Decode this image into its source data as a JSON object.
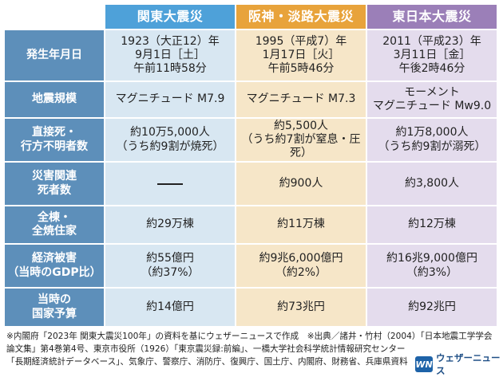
{
  "colors": {
    "kanto_header": "#4ea1d9",
    "hanshin_header": "#e8a33b",
    "higashi_header": "#9b7fb8",
    "row_header": "#5d8fba"
  },
  "columns": [
    {
      "label": "関東大震災"
    },
    {
      "label": "阪神・淡路大震災"
    },
    {
      "label": "東日本大震災"
    }
  ],
  "rows": [
    {
      "label": "発生年月日",
      "values": [
        "1923（大正12）年\n9月1日［土］\n午前11時58分",
        "1995（平成7）年\n1月17日［火］\n午前5時46分",
        "2011（平成23）年\n3月11日［金］\n午後2時46分"
      ]
    },
    {
      "label": "地震規模",
      "values": [
        "マグニチュード M7.9",
        "マグニチュード M7.3",
        "モーメント\nマグニチュード Mw9.0"
      ]
    },
    {
      "label": "直接死・\n行方不明者数",
      "values": [
        "約10万5,000人\n（うち約9割が焼死）",
        "約5,500人\n（うち約7割が窒息・圧死）",
        "約1万8,000人\n（うち約9割が溺死）"
      ]
    },
    {
      "label": "災害関連\n死者数",
      "values": [
        "",
        "約900人",
        "約3,800人"
      ]
    },
    {
      "label": "全棟・\n全焼住家",
      "values": [
        "約29万棟",
        "約11万棟",
        "約12万棟"
      ]
    },
    {
      "label": "経済被害\n（当時のGDP比）",
      "values": [
        "約55億円\n（約37%）",
        "約9兆6,000億円\n（約2%）",
        "約16兆9,000億円\n（約3%）"
      ]
    },
    {
      "label": "当時の\n国家予算",
      "values": [
        "約14億円",
        "約73兆円",
        "約92兆円"
      ]
    }
  ],
  "footer": {
    "line1": "※内閣府「2023年 関東大震災100年」の資料を基にウェザーニュースで作成　※出典／諸井・竹村（2004）「日本地震工学学会",
    "line2": "論文集」第4巻第4号、東京市役所（1926）「東京震災録:前編」、一橋大学社会科学統計情報研究センター",
    "line3": "「長期経済統計データベース」、気象庁、警察庁、消防庁、復興庁、国土庁、内閣府、財務省、兵庫県資料"
  },
  "brand": {
    "logo_text": "WN",
    "name": "ウェザーニュース"
  }
}
